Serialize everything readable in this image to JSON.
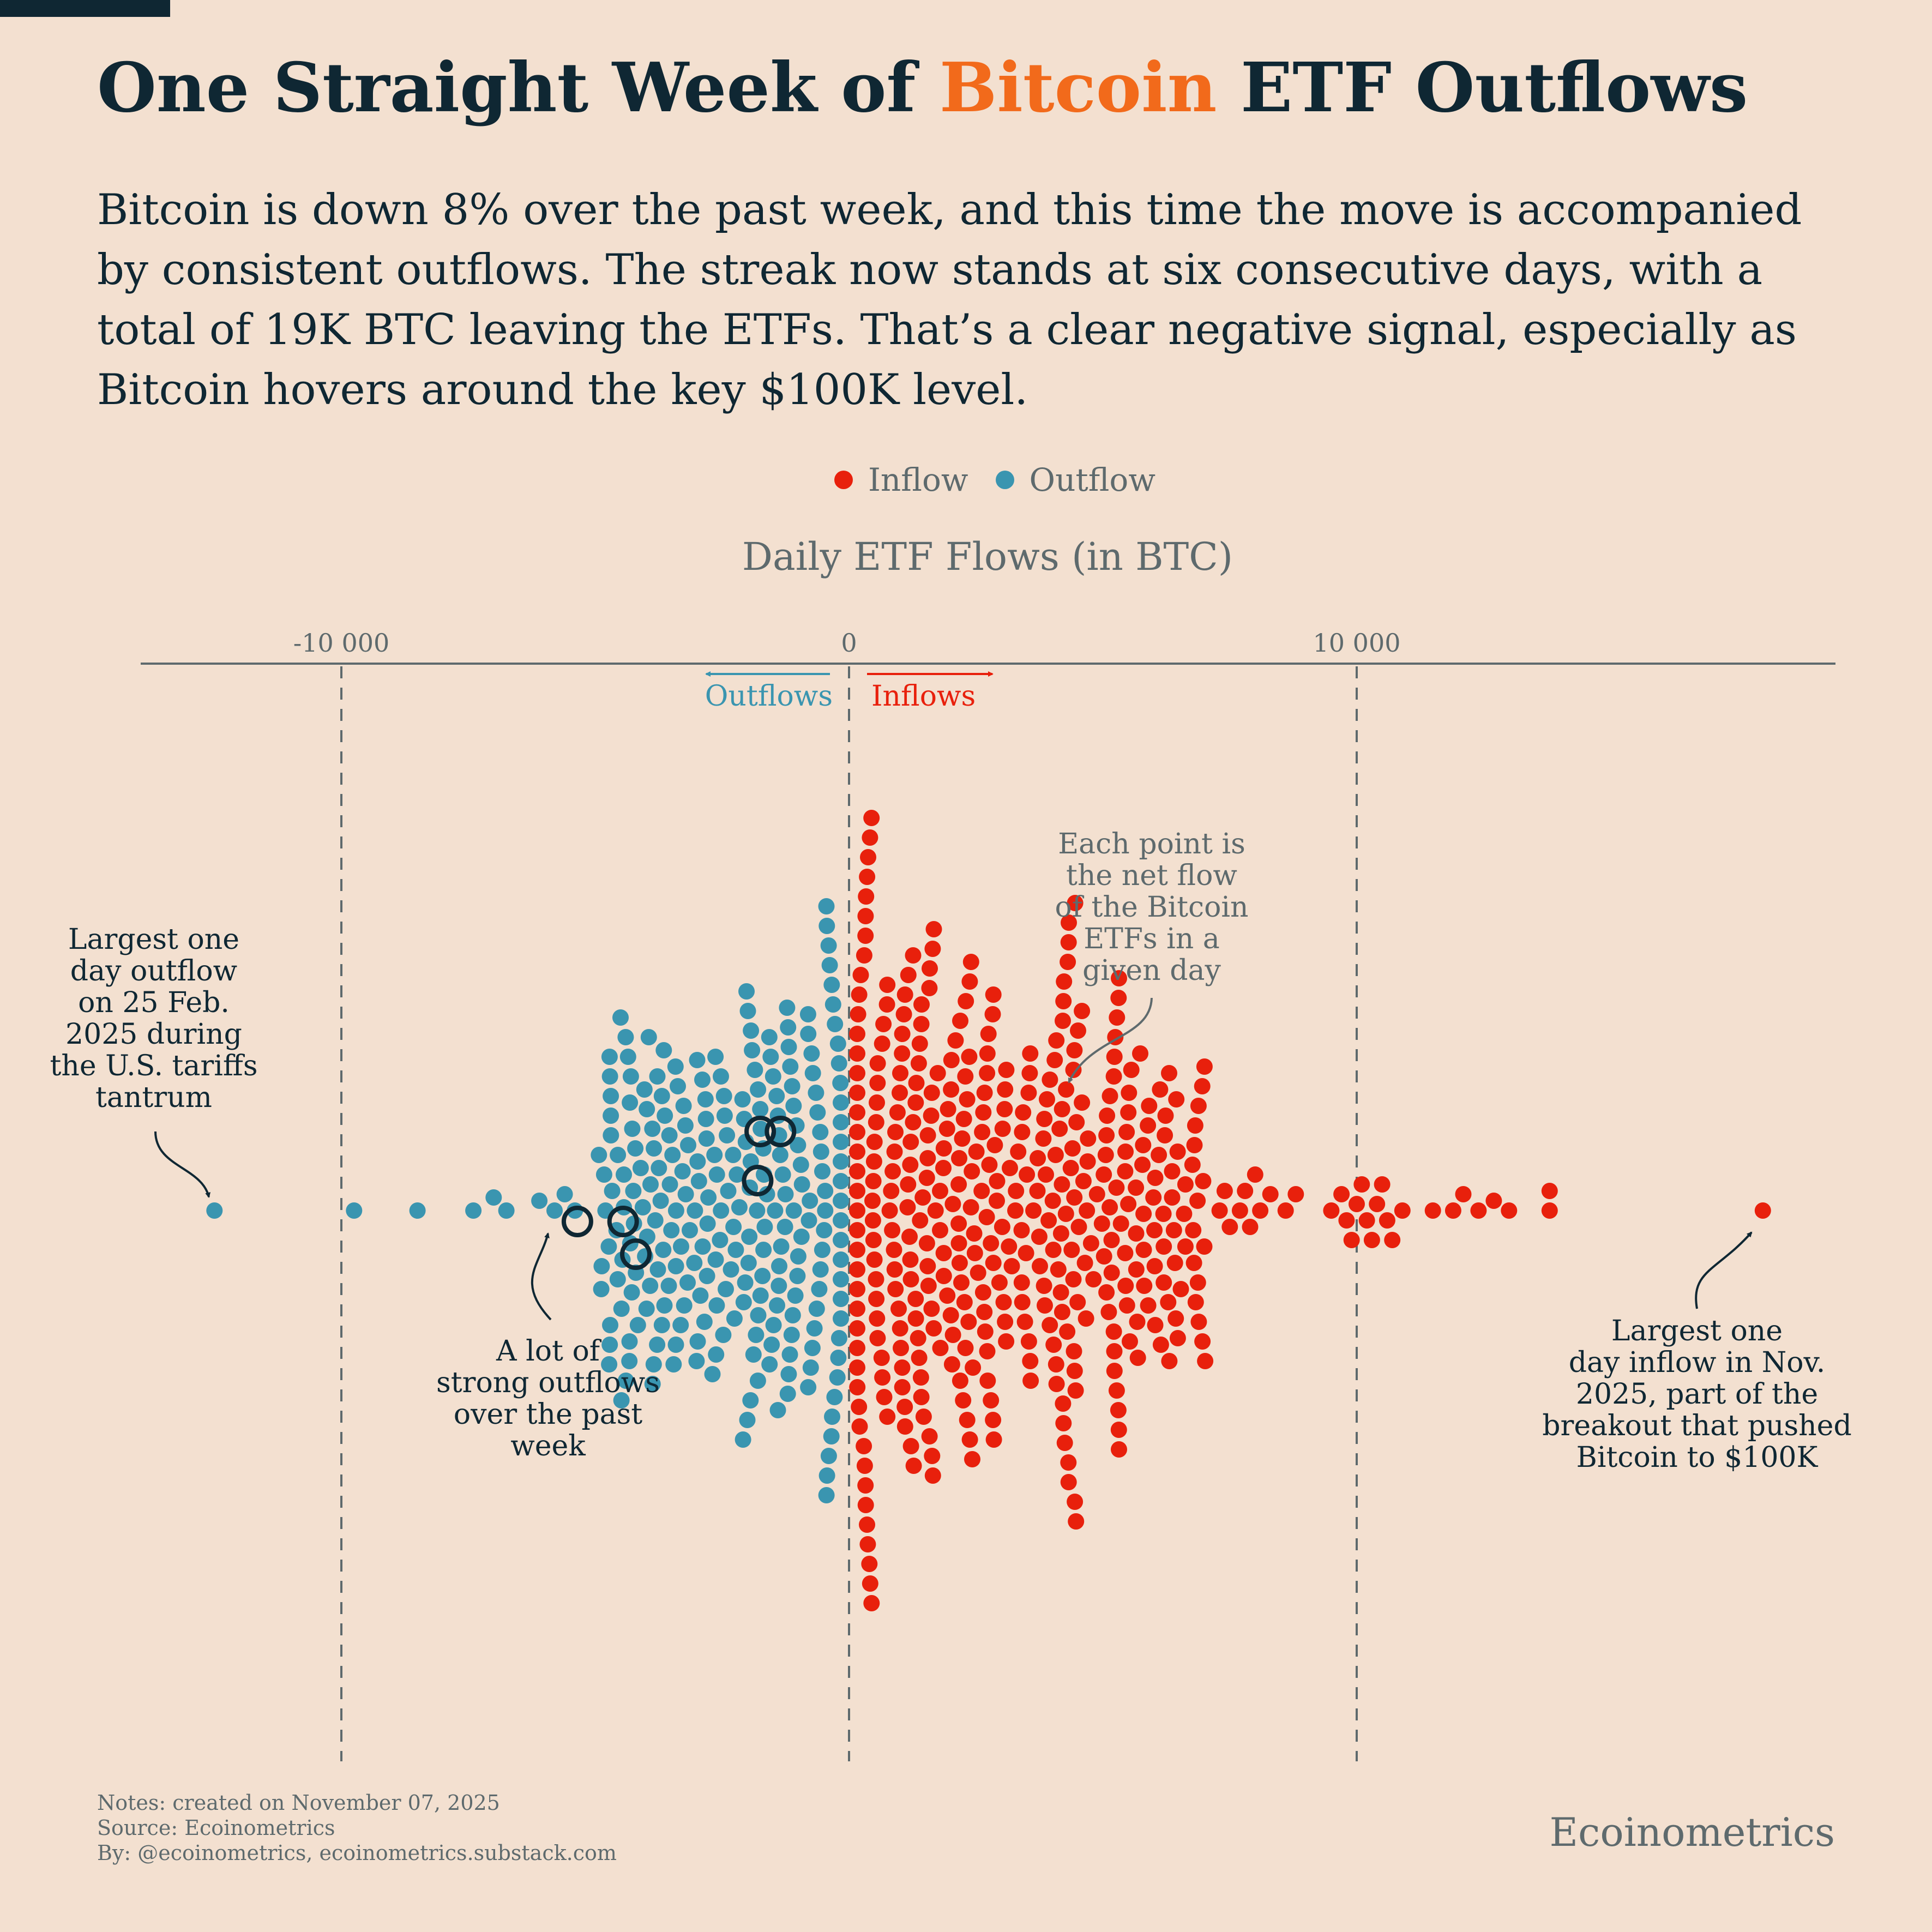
{
  "header": {
    "title_before": "One Straight Week of ",
    "title_highlight": "Bitcoin",
    "title_after": " ETF Outflows",
    "subtitle": "Bitcoin is down 8% over the past week, and this time the move is accompanied by consistent outflows. The streak now stands at six consecutive days, with a total of 19K BTC leaving the ETFs. That’s a clear negative signal, especially as Bitcoin hovers around the key $100K level."
  },
  "colors": {
    "background": "#f3e0d0",
    "inflow": "#e8200c",
    "outflow": "#3a95b0",
    "dark": "#0f2733",
    "grey": "#5e6a6d",
    "highlight": "#f26a1b"
  },
  "legend": {
    "inflow": "Inflow",
    "outflow": "Outflow"
  },
  "chart_data": {
    "type": "scatter",
    "subtype": "beeswarm",
    "xlabel": "Daily ETF Flows (in BTC)",
    "ylabel": "",
    "xlim": [
      -14000,
      19500
    ],
    "x_ticks": [
      -10000,
      0,
      10000
    ],
    "x_tick_labels": [
      "-10 000",
      "0",
      "10 000"
    ],
    "grid": "vertical dashed at ticks",
    "legend_position": "top-center",
    "direction_labels": {
      "outflows": "Outflows",
      "inflows": "Inflows"
    },
    "series": [
      {
        "name": "Inflow",
        "values": [
          18000,
          13800,
          13800,
          13000,
          12700,
          12400,
          12100,
          11900,
          11500,
          10900,
          10700,
          10600,
          10500,
          10400,
          10300,
          10200,
          10100,
          10000,
          9900,
          9800,
          9700,
          9500,
          8800,
          8600,
          8300,
          8100,
          8000,
          7900,
          7800,
          7700,
          7500,
          7400,
          7300
        ],
        "summary": "≈ 400 additional days between 0 and 7 000 BTC (dense cluster)"
      },
      {
        "name": "Outflow",
        "values": [
          -12500,
          -9750,
          -8500,
          -7400,
          -7000,
          -6750,
          -6100,
          -5800,
          -5600,
          -5400
        ],
        "summary": "≈ 250 additional days between -5 000 and 0 BTC (dense cluster)"
      }
    ],
    "highlighted_past_week": [
      -5350,
      -4450,
      -4200,
      -1800,
      -1750,
      -1350
    ],
    "annotations": [
      {
        "id": "largest-outflow",
        "text": "Largest one day outflow on 25 Feb. 2025 during the U.S. tariffs tantrum",
        "lines": [
          "Largest one",
          "day outflow",
          "on 25 Feb.",
          "2025 during",
          "the U.S. tariffs",
          "tantrum"
        ]
      },
      {
        "id": "past-week",
        "text": "A lot of strong outflows over the past week",
        "lines": [
          "A lot of",
          "strong outflows",
          "over the past",
          "week"
        ]
      },
      {
        "id": "each-point",
        "text": "Each point is the net flow of the Bitcoin ETFs in a given day",
        "lines": [
          "Each point is",
          "the net flow",
          "of the Bitcoin",
          "ETFs in a",
          "given day"
        ]
      },
      {
        "id": "largest-inflow",
        "text": "Largest one day inflow in Nov. 2025, part of the breakout that pushed Bitcoin to $100K",
        "lines": [
          "Largest one",
          "day inflow in Nov.",
          "2025, part of the",
          "breakout that pushed",
          "Bitcoin to $100K"
        ]
      }
    ]
  },
  "footer": {
    "notes": "Notes: created on November 07, 2025",
    "source": "Source: Ecoinometrics",
    "by": "By: @ecoinometrics, ecoinometrics.substack.com",
    "brand": "Ecoinometrics"
  }
}
